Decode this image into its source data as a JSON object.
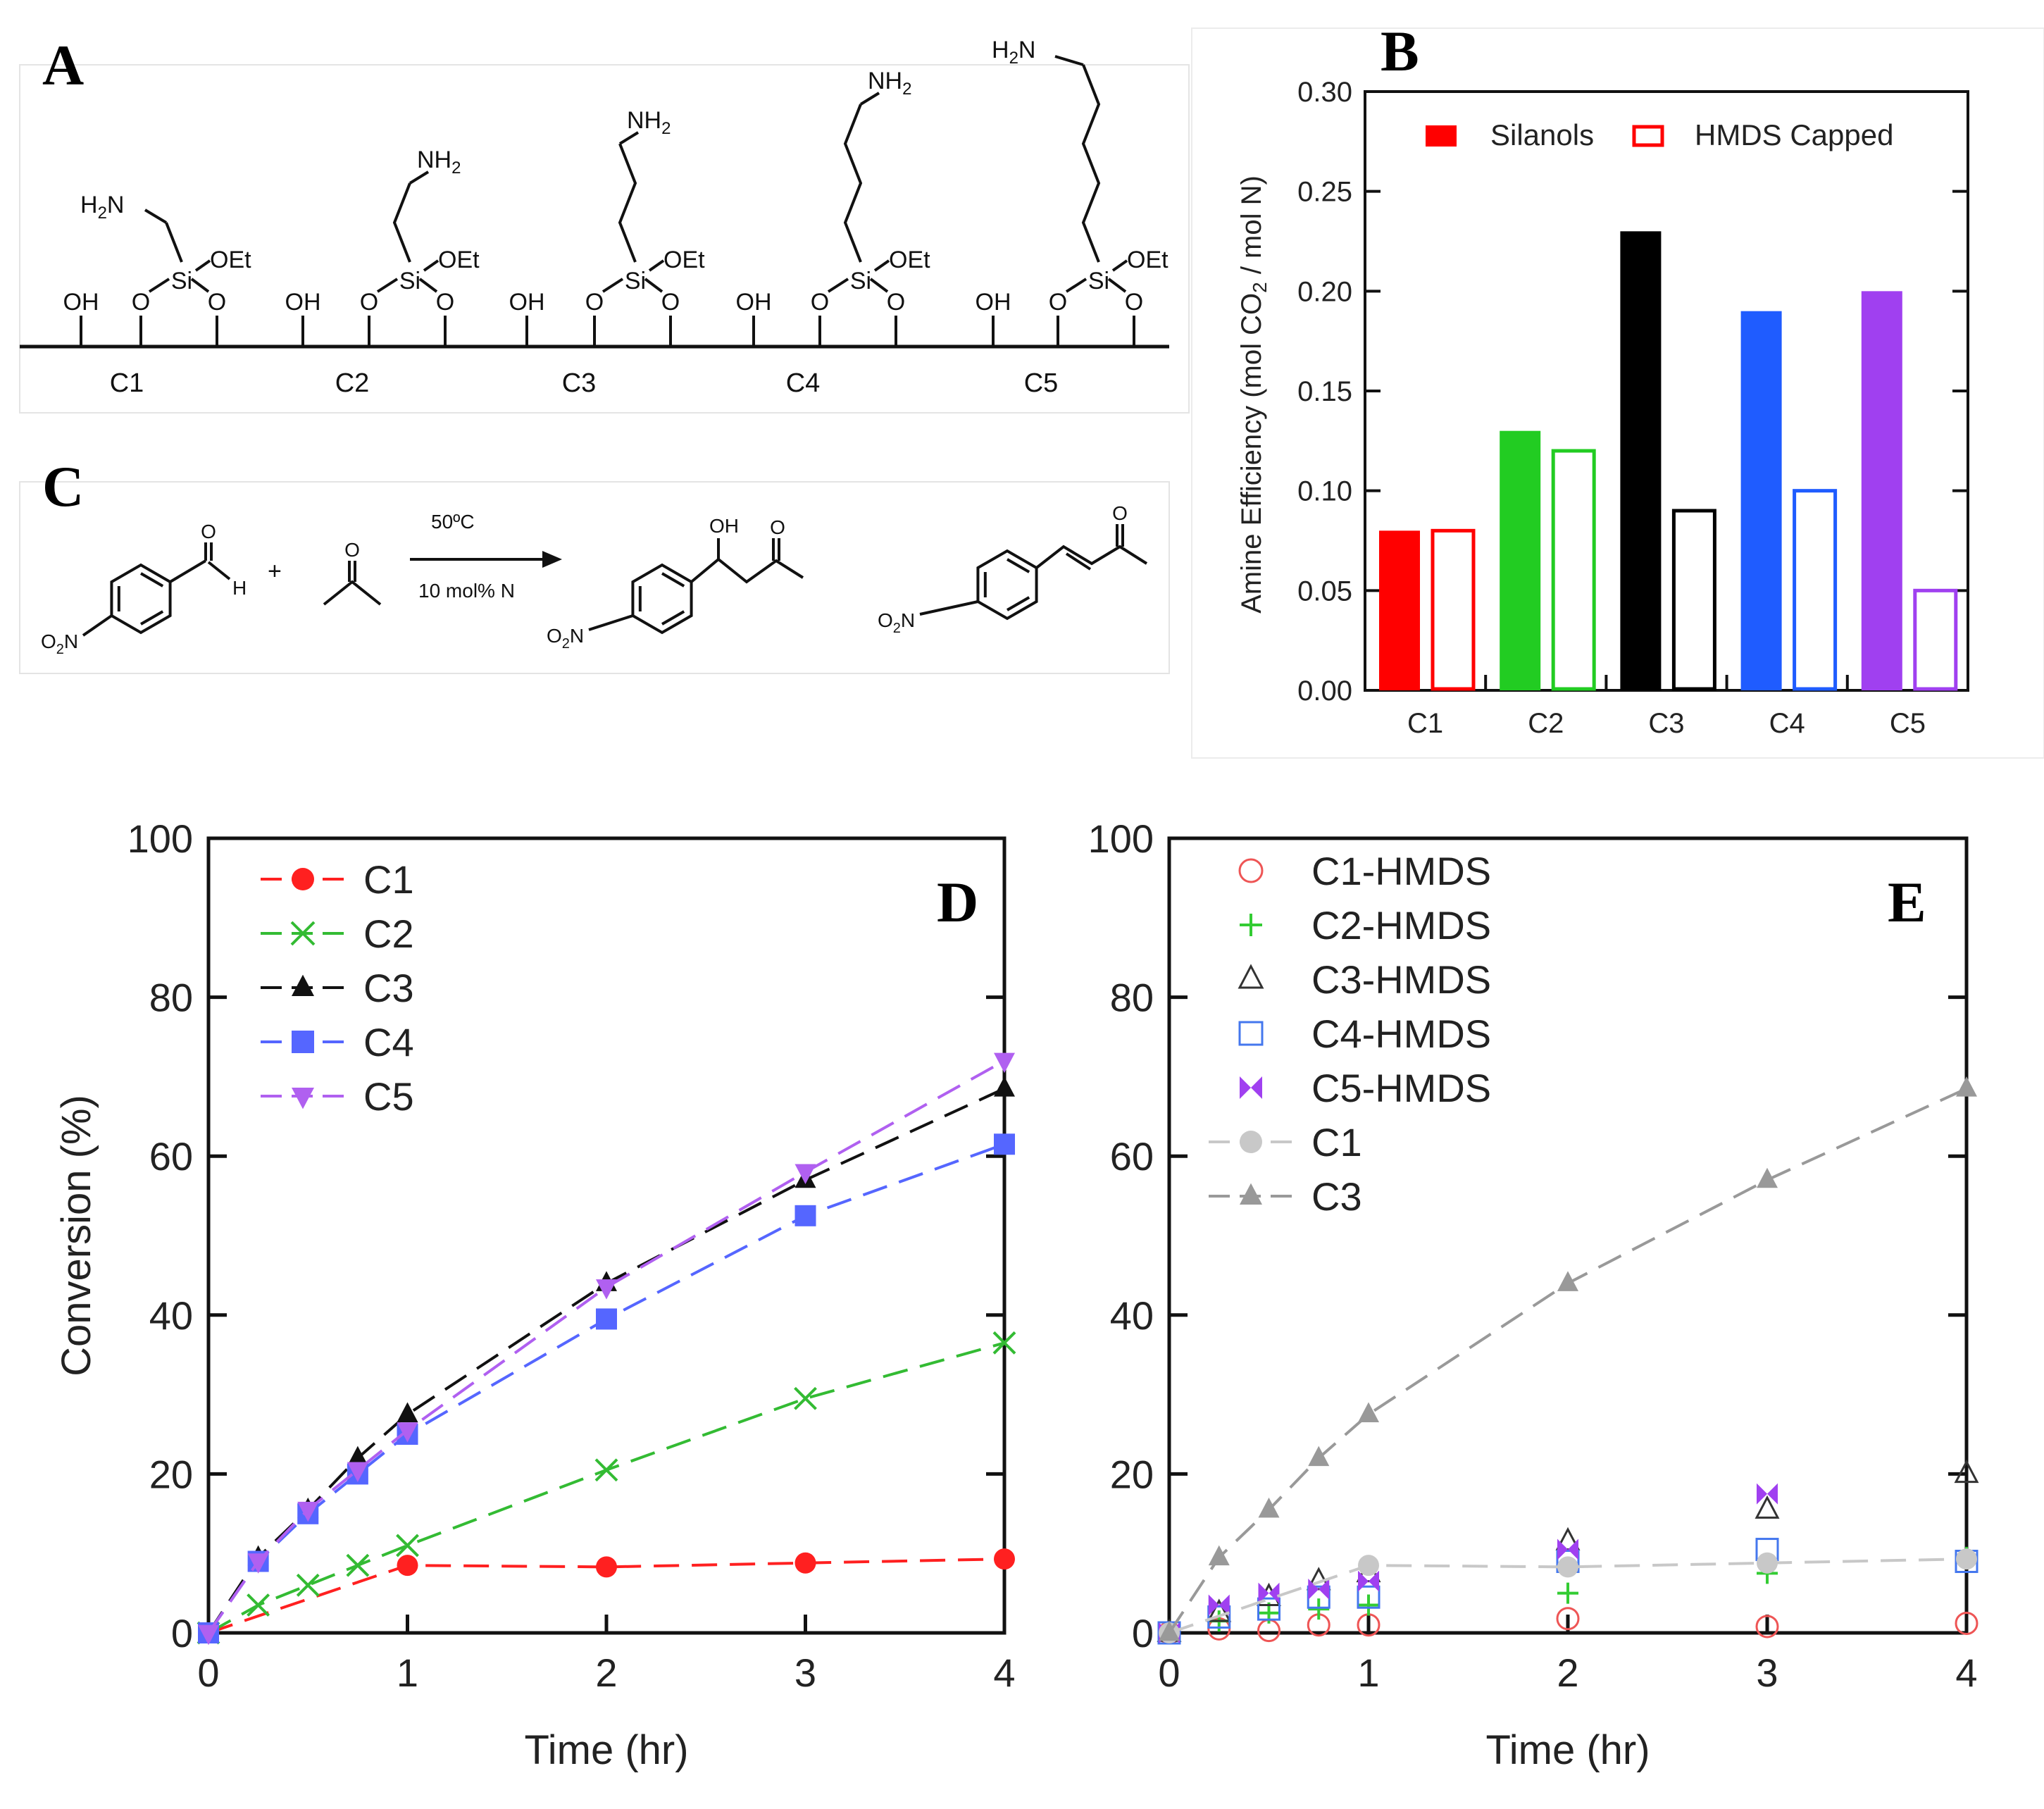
{
  "panels": {
    "A": {
      "letter": "A",
      "oh": "OH",
      "oet": "OEt",
      "si": "Si",
      "o": "O",
      "amine_nh2": "NH2",
      "amine_h2n": "H2N",
      "labels": [
        "C1",
        "C2",
        "C3",
        "C4",
        "C5"
      ]
    },
    "C": {
      "letter": "C",
      "temp": "50ºC",
      "catalyst": "10 mol% N",
      "aldehyde_h": "H",
      "plus": "+",
      "o": "O",
      "oh": "OH",
      "nitro": "O2N"
    },
    "B_letter": "B",
    "D_letter": "D",
    "E_letter": "E"
  },
  "colors": {
    "C1": "#ff0000",
    "C2": "#22cc22",
    "C3": "#000000",
    "C4": "#1f5cff",
    "C5": "#a040f0",
    "D_C1": "#ff2020",
    "D_C2": "#33bb33",
    "D_C3": "#111111",
    "D_C4": "#5566ff",
    "D_C5": "#b060f0",
    "E_C1_HMDS": "#ee5555",
    "E_C2_HMDS": "#33cc33",
    "E_C3_HMDS": "#333333",
    "E_C4_HMDS": "#4477ee",
    "E_C5_HMDS": "#a040f0",
    "E_C1": "#c8c8c8",
    "E_C3": "#999999"
  },
  "chart_data": [
    {
      "id": "B",
      "type": "bar",
      "title": "",
      "xlabel": "",
      "ylabel": "Amine Efficiency (mol CO2 / mol N)",
      "categories": [
        "C1",
        "C2",
        "C3",
        "C4",
        "C5"
      ],
      "series": [
        {
          "name": "Silanols",
          "fill": "solid",
          "values": [
            0.08,
            0.13,
            0.23,
            0.19,
            0.2
          ]
        },
        {
          "name": "HMDS Capped",
          "fill": "open",
          "values": [
            0.08,
            0.12,
            0.09,
            0.1,
            0.05
          ]
        }
      ],
      "ylim": [
        0,
        0.3
      ],
      "yticks": [
        "0.00",
        "0.05",
        "0.10",
        "0.15",
        "0.20",
        "0.25",
        "0.30"
      ],
      "legend": "top"
    },
    {
      "id": "D",
      "type": "line",
      "xlabel": "Time (hr)",
      "ylabel": "Conversion (%)",
      "xlim": [
        0,
        4
      ],
      "ylim": [
        0,
        100
      ],
      "xticks": [
        "0",
        "1",
        "2",
        "3",
        "4"
      ],
      "yticks": [
        "0",
        "20",
        "40",
        "60",
        "80",
        "100"
      ],
      "legend": "top-left",
      "series": [
        {
          "name": "C1",
          "marker": "circle",
          "x": [
            0,
            1,
            2,
            3,
            4
          ],
          "y": [
            0,
            8.5,
            8.3,
            8.8,
            9.3
          ]
        },
        {
          "name": "C2",
          "marker": "x",
          "x": [
            0,
            0.25,
            0.5,
            0.75,
            1,
            2,
            3,
            4
          ],
          "y": [
            0,
            3.5,
            6,
            8.5,
            11,
            20.5,
            29.5,
            36.5
          ]
        },
        {
          "name": "C3",
          "marker": "triangle-up",
          "x": [
            0,
            0.25,
            0.5,
            0.75,
            1,
            2,
            3,
            4
          ],
          "y": [
            0,
            9.5,
            15.5,
            22,
            27.5,
            44,
            57,
            68.5
          ]
        },
        {
          "name": "C4",
          "marker": "square",
          "x": [
            0,
            0.25,
            0.5,
            0.75,
            1,
            2,
            3,
            4
          ],
          "y": [
            0,
            9,
            15,
            20,
            25,
            39.5,
            52.5,
            61.5
          ]
        },
        {
          "name": "C5",
          "marker": "triangle-down",
          "x": [
            0,
            0.25,
            0.5,
            0.75,
            1,
            2,
            3,
            4
          ],
          "y": [
            0,
            9,
            15.5,
            20.5,
            25.5,
            43.5,
            58,
            72
          ]
        }
      ]
    },
    {
      "id": "E",
      "type": "scatter",
      "xlabel": "Time (hr)",
      "ylabel": "",
      "xlim": [
        0,
        4
      ],
      "ylim": [
        0,
        100
      ],
      "xticks": [
        "0",
        "1",
        "2",
        "3",
        "4"
      ],
      "yticks": [
        "0",
        "20",
        "40",
        "60",
        "80",
        "100"
      ],
      "legend": "top-left",
      "series": [
        {
          "name": "C1-HMDS",
          "marker": "open-circle",
          "x": [
            0,
            0.25,
            0.5,
            0.75,
            1,
            2,
            3,
            4
          ],
          "y": [
            0,
            0.5,
            0.3,
            1,
            1,
            1.8,
            0.8,
            1.2
          ]
        },
        {
          "name": "C2-HMDS",
          "marker": "plus",
          "x": [
            0,
            0.25,
            0.5,
            0.75,
            1,
            2,
            3,
            4
          ],
          "y": [
            0,
            1.5,
            2.5,
            3,
            3.5,
            5,
            7.5,
            9.5
          ]
        },
        {
          "name": "C3-HMDS",
          "marker": "open-triangle",
          "x": [
            0,
            0.25,
            0.5,
            0.75,
            1,
            2,
            3,
            4
          ],
          "y": [
            0,
            2.5,
            4.5,
            6.5,
            7.5,
            11.5,
            15.5,
            20
          ]
        },
        {
          "name": "C4-HMDS",
          "marker": "open-square",
          "x": [
            0,
            0.25,
            0.5,
            0.75,
            1,
            2,
            3,
            4
          ],
          "y": [
            0,
            2,
            3,
            4.5,
            4.5,
            9,
            10.5,
            9
          ]
        },
        {
          "name": "C5-HMDS",
          "marker": "bowtie",
          "x": [
            0,
            0.25,
            0.5,
            0.75,
            1,
            2,
            3
          ],
          "y": [
            0,
            3.5,
            5,
            5.5,
            6.5,
            10.5,
            17.5
          ]
        },
        {
          "name": "C1",
          "marker": "circle",
          "dashed": true,
          "x": [
            0,
            1,
            2,
            3,
            4
          ],
          "y": [
            0,
            8.5,
            8.3,
            8.8,
            9.3
          ]
        },
        {
          "name": "C3",
          "marker": "triangle-up",
          "dashed": true,
          "x": [
            0,
            0.25,
            0.5,
            0.75,
            1,
            2,
            3,
            4
          ],
          "y": [
            0,
            9.5,
            15.5,
            22,
            27.5,
            44,
            57,
            68.5
          ]
        }
      ]
    }
  ]
}
